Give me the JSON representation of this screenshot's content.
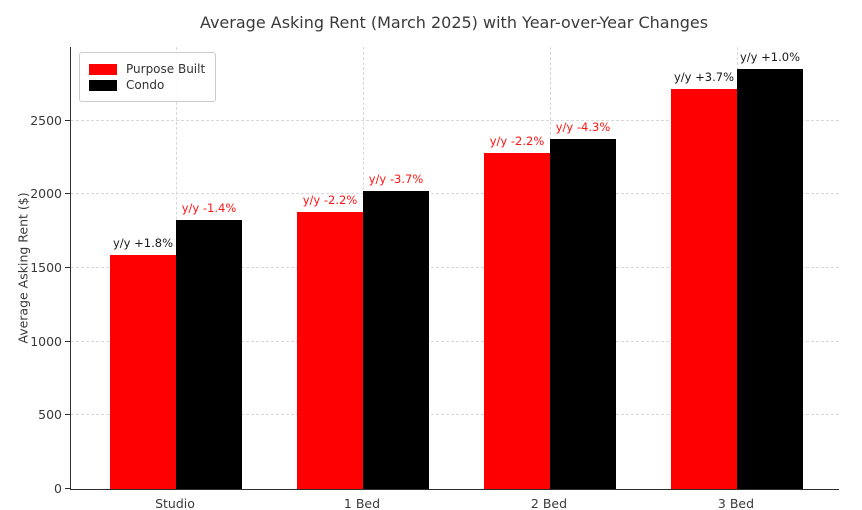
{
  "chart_data": {
    "type": "bar",
    "title": "Average Asking Rent (March 2025) with Year-over-Year Changes",
    "xlabel": "",
    "ylabel": "Average Asking Rent ($)",
    "categories": [
      "Studio",
      "1 Bed",
      "2 Bed",
      "3 Bed"
    ],
    "series": [
      {
        "name": "Purpose Built",
        "color": "#ff0000",
        "values": [
          1590,
          1880,
          2280,
          2715
        ],
        "yoy_labels": [
          "y/y +1.8%",
          "y/y -2.2%",
          "y/y -2.2%",
          "y/y +3.7%"
        ]
      },
      {
        "name": "Condo",
        "color": "#000000",
        "values": [
          1825,
          2025,
          2375,
          2850
        ],
        "yoy_labels": [
          "y/y -1.4%",
          "y/y -3.7%",
          "y/y -4.3%",
          "y/y +1.0%"
        ]
      }
    ],
    "y_ticks": [
      0,
      500,
      1000,
      1500,
      2000,
      2500
    ],
    "ylim": [
      0,
      3000
    ],
    "grid": "dashed, horizontal at y-ticks and vertical at category centers",
    "legend_position": "upper left"
  },
  "colors": {
    "positive_annotation": "#1a1a1a",
    "negative_annotation": "#ff1414",
    "grid": "#d8d8d8",
    "axis": "#2e2e2e",
    "text": "#3a3a3a",
    "background": "#ffffff"
  }
}
